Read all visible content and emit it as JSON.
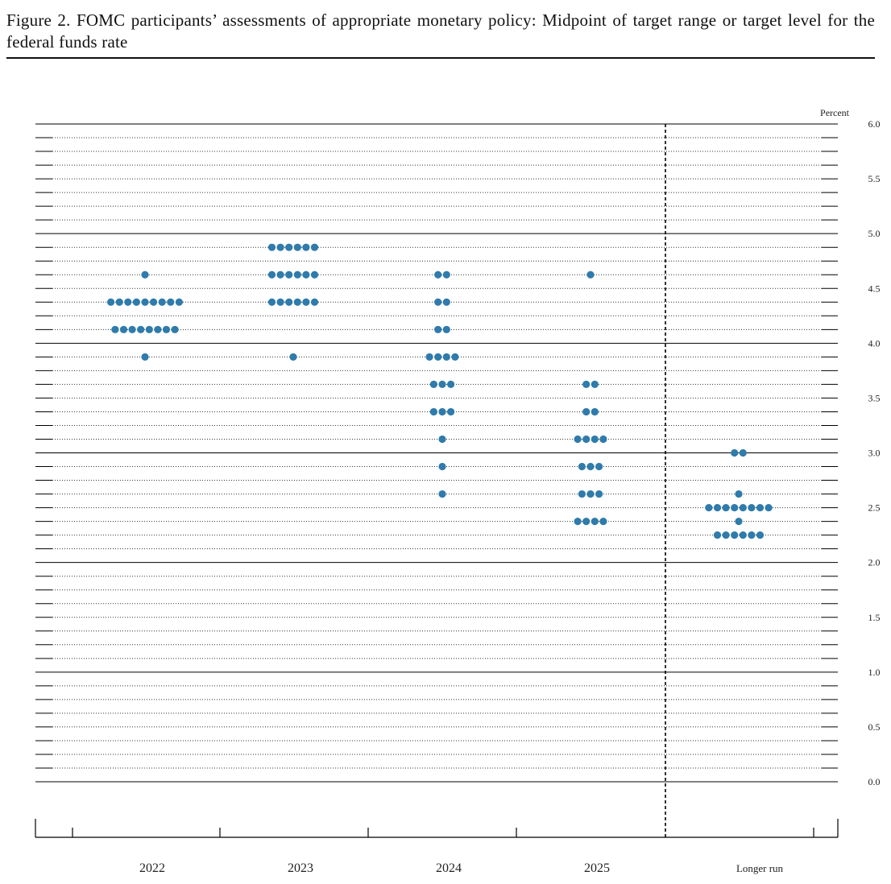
{
  "chart_data": {
    "type": "dot",
    "title": "Figure 2.  FOMC participants’ assessments of appropriate monetary policy: Midpoint of target range or target level for the federal funds rate",
    "y_label": "Percent",
    "categories": [
      "2022",
      "2023",
      "2024",
      "2025",
      "Longer run"
    ],
    "color": "#2f7bab",
    "values": [
      [
        4.625,
        4.375,
        4.375,
        4.375,
        4.375,
        4.375,
        4.375,
        4.375,
        4.375,
        4.375,
        4.125,
        4.125,
        4.125,
        4.125,
        4.125,
        4.125,
        4.125,
        4.125,
        3.875
      ],
      [
        4.875,
        4.875,
        4.875,
        4.875,
        4.875,
        4.875,
        4.625,
        4.625,
        4.625,
        4.625,
        4.625,
        4.625,
        4.375,
        4.375,
        4.375,
        4.375,
        4.375,
        4.375,
        3.875
      ],
      [
        4.625,
        4.625,
        4.375,
        4.375,
        4.125,
        4.125,
        3.875,
        3.875,
        3.875,
        3.875,
        3.625,
        3.625,
        3.625,
        3.375,
        3.375,
        3.375,
        3.125,
        2.875,
        2.625
      ],
      [
        4.625,
        3.625,
        3.625,
        3.375,
        3.375,
        3.125,
        3.125,
        3.125,
        3.125,
        2.875,
        2.875,
        2.875,
        2.625,
        2.625,
        2.625,
        2.375,
        2.375,
        2.375,
        2.375
      ],
      [
        3.0,
        3.0,
        2.625,
        2.5,
        2.5,
        2.5,
        2.5,
        2.5,
        2.5,
        2.5,
        2.5,
        2.375,
        2.25,
        2.25,
        2.25,
        2.25,
        2.25,
        2.25
      ]
    ],
    "ylim": [
      0,
      6
    ],
    "yticks": [
      {
        "value": 0,
        "label": "0.0"
      },
      {
        "value": 0.5,
        "label": "0.5"
      },
      {
        "value": 1,
        "label": "1.0"
      },
      {
        "value": 1.5,
        "label": "1.5"
      },
      {
        "value": 2,
        "label": "2.0"
      },
      {
        "value": 2.5,
        "label": "2.5"
      },
      {
        "value": 3,
        "label": "3.0"
      },
      {
        "value": 3.5,
        "label": "3.5"
      },
      {
        "value": 4,
        "label": "4.0"
      },
      {
        "value": 4.5,
        "label": "4.5"
      },
      {
        "value": 5,
        "label": "5.0"
      },
      {
        "value": 5.5,
        "label": "5.5"
      },
      {
        "value": 6,
        "label": "6.0"
      }
    ],
    "grid": true
  }
}
